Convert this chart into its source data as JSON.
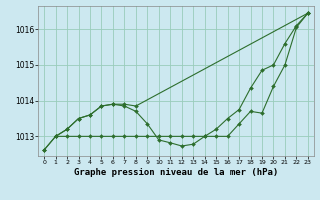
{
  "xlabel": "Graphe pression niveau de la mer (hPa)",
  "background_color": "#cce8f0",
  "grid_color": "#99ccbb",
  "line_color": "#2d6e2d",
  "ylim": [
    1012.45,
    1016.65
  ],
  "yticks": [
    1013,
    1014,
    1015,
    1016
  ],
  "xticks": [
    0,
    1,
    2,
    3,
    4,
    5,
    6,
    7,
    8,
    9,
    10,
    11,
    12,
    13,
    14,
    15,
    16,
    17,
    18,
    19,
    20,
    21,
    22,
    23
  ],
  "xlabel_fontsize": 6.5,
  "ytick_fontsize": 5.5,
  "xtick_fontsize": 4.5,
  "line1_x": [
    0,
    1,
    2,
    3,
    4,
    5,
    6,
    7,
    8,
    23
  ],
  "line1_y": [
    1012.62,
    1013.0,
    1013.2,
    1013.5,
    1013.6,
    1013.85,
    1013.9,
    1013.9,
    1013.85,
    1016.45
  ],
  "line2_x": [
    0,
    1,
    2,
    3,
    4,
    5,
    6,
    7,
    8,
    9,
    10,
    11,
    12,
    13,
    14,
    15,
    16,
    17,
    18,
    19,
    20,
    21,
    22,
    23
  ],
  "line2_y": [
    1012.62,
    1013.0,
    1013.2,
    1013.5,
    1013.6,
    1013.85,
    1013.9,
    1013.85,
    1013.7,
    1013.35,
    1012.9,
    1012.82,
    1012.73,
    1012.78,
    1013.0,
    1013.2,
    1013.5,
    1013.75,
    1014.35,
    1014.85,
    1015.0,
    1015.6,
    1016.1,
    1016.45
  ],
  "line3_x": [
    1,
    2,
    3,
    4,
    5,
    6,
    7,
    8,
    9,
    10,
    11,
    12,
    13,
    14,
    15,
    16,
    17,
    18,
    19,
    20,
    21,
    22,
    23
  ],
  "line3_y": [
    1013.0,
    1013.0,
    1013.0,
    1013.0,
    1013.0,
    1013.0,
    1013.0,
    1013.0,
    1013.0,
    1013.0,
    1013.0,
    1013.0,
    1013.0,
    1013.0,
    1013.0,
    1013.0,
    1013.35,
    1013.7,
    1013.65,
    1014.4,
    1015.0,
    1016.05,
    1016.45
  ]
}
